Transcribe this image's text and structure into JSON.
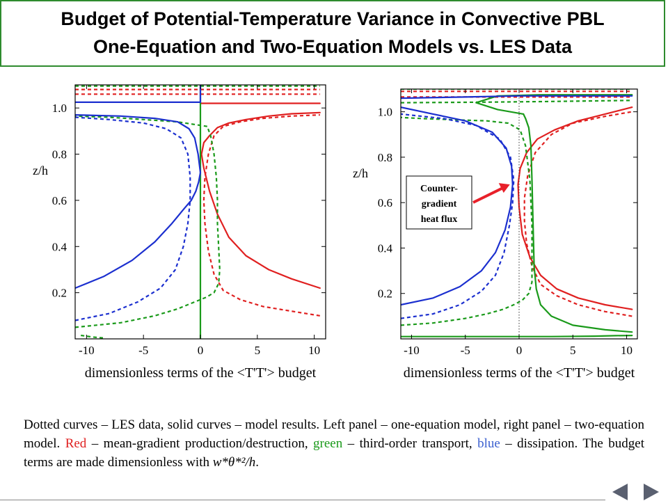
{
  "title": {
    "line1": "Budget of Potential-Temperature Variance in Convective PBL",
    "line2": "One-Equation and Two-Equation Models vs. LES Data"
  },
  "caption": {
    "part1": "Dotted curves – LES data, solid curves – model results. Left panel – one-equation model, right panel – two-equation model. ",
    "red_word": "Red",
    "part2": " – mean-gradient production/destruction, ",
    "green_word": "green",
    "part3": " – third-order transport, ",
    "blue_word": "blue",
    "part4": " – dissipation. The budget terms are made dimensionless with ",
    "formula": "w*θ*²/h",
    "part5": "."
  },
  "colors": {
    "red": "#e02020",
    "green": "#1a9a1a",
    "blue": "#1b2fcf",
    "title_border": "#2e8b2e",
    "arrow": "#e8202a"
  },
  "chart_data": [
    {
      "type": "line",
      "title": "",
      "xlabel": "dimensionless terms of the <T'T'> budget",
      "ylabel": "z/h",
      "xlim": [
        -11,
        11
      ],
      "ylim": [
        0,
        1.1
      ],
      "xticks": [
        "-10",
        "-5",
        "0",
        "5",
        "10"
      ],
      "xtick_values": [
        -10,
        -5,
        0,
        5,
        10
      ],
      "yticks": [
        "0.2",
        "0.4",
        "0.6",
        "0.8",
        "1.0"
      ],
      "ytick_values": [
        0.2,
        0.4,
        0.6,
        0.8,
        1.0
      ],
      "legend": "none",
      "grid": false,
      "series": [
        {
          "color": "red",
          "style": "solid",
          "x": [
            10.5,
            8,
            6,
            4,
            2.5,
            1.5,
            0.8,
            0.3,
            0.1,
            0.3,
            0.8,
            1.5,
            2.5,
            4,
            6,
            8,
            10.5
          ],
          "y": [
            0.22,
            0.26,
            0.3,
            0.36,
            0.44,
            0.54,
            0.64,
            0.74,
            0.8,
            0.85,
            0.88,
            0.915,
            0.935,
            0.95,
            0.965,
            0.975,
            0.98
          ]
        },
        {
          "color": "red",
          "style": "solid",
          "x": [
            0,
            10.5
          ],
          "y": [
            1.02,
            1.02
          ]
        },
        {
          "color": "red",
          "style": "dotted",
          "x": [
            10.5,
            8,
            5.5,
            3.5,
            2,
            1.2,
            0.7,
            0.4,
            0.3,
            0.4,
            0.7,
            1.2,
            2,
            3.5,
            5.5,
            8,
            10.5
          ],
          "y": [
            0.1,
            0.12,
            0.14,
            0.17,
            0.21,
            0.28,
            0.38,
            0.5,
            0.6,
            0.7,
            0.8,
            0.88,
            0.92,
            0.94,
            0.955,
            0.965,
            0.97
          ]
        },
        {
          "color": "red",
          "style": "dotted",
          "x": [
            -11,
            10.5
          ],
          "y": [
            1.08,
            1.08
          ]
        },
        {
          "color": "red",
          "style": "dotted",
          "x": [
            -11,
            10.5
          ],
          "y": [
            1.06,
            1.06
          ]
        },
        {
          "color": "green",
          "style": "solid",
          "x": [
            0,
            0
          ],
          "y": [
            0.0,
            1.1
          ]
        },
        {
          "color": "green",
          "style": "dotted",
          "x": [
            -11,
            -7,
            -4,
            -2,
            -0.5,
            0.5,
            1.2,
            1.6,
            1.7,
            1.6,
            1.5,
            1.5,
            1.4,
            1.2,
            0.9,
            0.6
          ],
          "y": [
            0.05,
            0.07,
            0.1,
            0.13,
            0.16,
            0.18,
            0.2,
            0.24,
            0.3,
            0.4,
            0.5,
            0.6,
            0.7,
            0.8,
            0.88,
            0.92
          ]
        },
        {
          "color": "green",
          "style": "dotted",
          "x": [
            0.6,
            -2,
            -5,
            -8,
            -11
          ],
          "y": [
            0.92,
            0.94,
            0.95,
            0.96,
            0.965
          ]
        },
        {
          "color": "green",
          "style": "dotted",
          "x": [
            -11,
            10.5
          ],
          "y": [
            1.095,
            1.095
          ]
        },
        {
          "color": "green",
          "style": "dotted",
          "x": [
            -10.5,
            -9.5,
            -8.5
          ],
          "y": [
            0.015,
            0.008,
            0.004
          ]
        },
        {
          "color": "blue",
          "style": "solid",
          "x": [
            -11,
            -8.5,
            -6,
            -4,
            -2.5,
            -1.5,
            -0.8,
            -0.4,
            -0.15,
            0,
            -0.2,
            -0.5,
            -1,
            -2,
            -4,
            -7,
            -11
          ],
          "y": [
            0.22,
            0.27,
            0.34,
            0.42,
            0.5,
            0.56,
            0.6,
            0.64,
            0.68,
            0.72,
            0.8,
            0.87,
            0.91,
            0.94,
            0.955,
            0.965,
            0.97
          ]
        },
        {
          "color": "blue",
          "style": "solid",
          "x": [
            -11,
            0
          ],
          "y": [
            1.025,
            1.025
          ]
        },
        {
          "color": "blue",
          "style": "solid",
          "x": [
            0,
            0
          ],
          "y": [
            1.025,
            1.1
          ]
        },
        {
          "color": "blue",
          "style": "dotted",
          "x": [
            -11,
            -8,
            -5.5,
            -3.5,
            -2.2,
            -1.5,
            -1.1,
            -0.9,
            -0.9,
            -1.1,
            -1.7,
            -3,
            -5,
            -8,
            -11
          ],
          "y": [
            0.08,
            0.11,
            0.16,
            0.22,
            0.3,
            0.4,
            0.5,
            0.6,
            0.7,
            0.8,
            0.87,
            0.91,
            0.935,
            0.95,
            0.96
          ]
        }
      ]
    },
    {
      "type": "line",
      "title": "",
      "xlabel": "dimensionless terms of the <T'T'> budget",
      "ylabel": "z/h",
      "xlim": [
        -11,
        11
      ],
      "ylim": [
        0,
        1.1
      ],
      "xticks": [
        "-10",
        "-5",
        "0",
        "5",
        "10"
      ],
      "xtick_values": [
        -10,
        -5,
        0,
        5,
        10
      ],
      "yticks": [
        "0.2",
        "0.4",
        "0.6",
        "0.8",
        "1.0"
      ],
      "ytick_values": [
        0.2,
        0.4,
        0.6,
        0.8,
        1.0
      ],
      "legend": "none",
      "grid": false,
      "annotation": "Counter- gradient heat flux",
      "series": [
        {
          "color": "red",
          "style": "solid",
          "x": [
            10.5,
            8,
            5.5,
            3.5,
            2,
            1,
            0.3,
            0,
            -0.1,
            0.1,
            0.7,
            1.7,
            3.3,
            5.5,
            8,
            10.5
          ],
          "y": [
            0.13,
            0.15,
            0.18,
            0.22,
            0.28,
            0.36,
            0.46,
            0.58,
            0.68,
            0.75,
            0.82,
            0.88,
            0.92,
            0.96,
            0.99,
            1.02
          ]
        },
        {
          "color": "red",
          "style": "dotted",
          "x": [
            10.5,
            8,
            5.5,
            3.5,
            2,
            1.2,
            0.7,
            0.5,
            0.5,
            0.8,
            1.5,
            3,
            5,
            8,
            10.5
          ],
          "y": [
            0.1,
            0.12,
            0.15,
            0.19,
            0.24,
            0.32,
            0.42,
            0.52,
            0.62,
            0.72,
            0.82,
            0.9,
            0.95,
            0.98,
            1.0
          ]
        },
        {
          "color": "red",
          "style": "dotted",
          "x": [
            -11,
            10.5
          ],
          "y": [
            1.09,
            1.09
          ]
        },
        {
          "color": "red",
          "style": "dotted",
          "x": [
            -11,
            10.5
          ],
          "y": [
            1.065,
            1.065
          ]
        },
        {
          "color": "green",
          "style": "solid",
          "x": [
            -11,
            3,
            7,
            9,
            10.5
          ],
          "y": [
            0.01,
            0.01,
            0.012,
            0.014,
            0.015
          ]
        },
        {
          "color": "green",
          "style": "solid",
          "x": [
            10.5,
            8,
            5,
            3,
            2,
            1.6,
            1.4,
            1.3,
            1.2,
            1.1,
            0.9,
            0.6,
            0.4
          ],
          "y": [
            0.03,
            0.04,
            0.06,
            0.1,
            0.15,
            0.22,
            0.32,
            0.5,
            0.7,
            0.85,
            0.93,
            0.97,
            0.99
          ]
        },
        {
          "color": "green",
          "style": "solid",
          "x": [
            0.4,
            -2,
            -4,
            -2,
            2,
            6,
            10.5
          ],
          "y": [
            0.99,
            1.01,
            1.04,
            1.07,
            1.075,
            1.075,
            1.075
          ]
        },
        {
          "color": "green",
          "style": "dotted",
          "x": [
            -11,
            -8,
            -5,
            -3,
            -1.5,
            -0.5,
            0.3,
            0.9,
            1.2,
            1.2,
            1.0,
            0.6,
            0.1,
            -1,
            -3,
            -6,
            -9,
            -11
          ],
          "y": [
            0.06,
            0.07,
            0.09,
            0.11,
            0.13,
            0.15,
            0.17,
            0.2,
            0.25,
            0.5,
            0.7,
            0.85,
            0.92,
            0.95,
            0.96,
            0.965,
            0.97,
            0.975
          ]
        },
        {
          "color": "green",
          "style": "dotted",
          "x": [
            -11,
            -4,
            2,
            10.5
          ],
          "y": [
            1.04,
            1.042,
            1.045,
            1.05
          ]
        },
        {
          "color": "green",
          "style": "dotted",
          "x": [
            -11,
            10.5
          ],
          "y": [
            1.1,
            1.1
          ]
        },
        {
          "color": "blue",
          "style": "solid",
          "x": [
            -11,
            -8,
            -5.5,
            -3.5,
            -2.2,
            -1.3,
            -0.8,
            -0.6,
            -0.7,
            -1.2,
            -2.5,
            -5,
            -8,
            -11
          ],
          "y": [
            0.15,
            0.18,
            0.23,
            0.3,
            0.38,
            0.48,
            0.58,
            0.68,
            0.76,
            0.84,
            0.91,
            0.96,
            0.99,
            1.02
          ]
        },
        {
          "color": "blue",
          "style": "solid",
          "x": [
            -11,
            -5,
            0,
            10.5
          ],
          "y": [
            1.06,
            1.065,
            1.07,
            1.07
          ]
        },
        {
          "color": "blue",
          "style": "dotted",
          "x": [
            -11,
            -8,
            -5.5,
            -3.5,
            -2.2,
            -1.4,
            -0.9,
            -0.6,
            -0.5,
            -0.8,
            -1.8,
            -4,
            -7,
            -11
          ],
          "y": [
            0.09,
            0.11,
            0.15,
            0.21,
            0.28,
            0.38,
            0.5,
            0.6,
            0.7,
            0.8,
            0.88,
            0.94,
            0.97,
            0.99
          ]
        }
      ]
    }
  ]
}
